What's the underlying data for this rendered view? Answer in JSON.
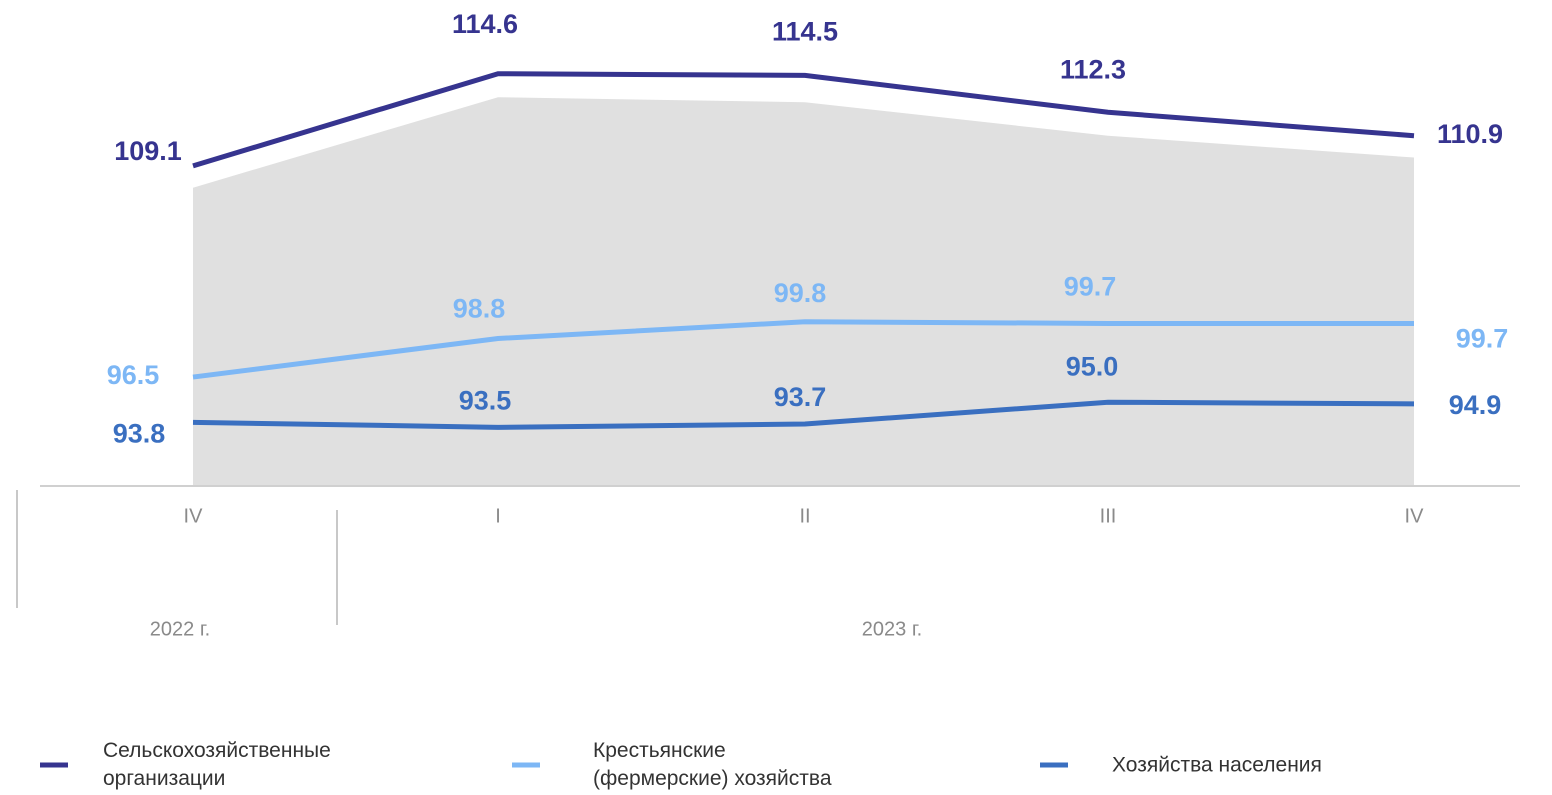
{
  "chart_data": {
    "type": "line",
    "categories": [
      "IV",
      "I",
      "II",
      "III",
      "IV"
    ],
    "groups": [
      {
        "label": "2022 г.",
        "span": 1
      },
      {
        "label": "2023 г.",
        "span": 4
      }
    ],
    "area": {
      "color": "#e0e0e0",
      "values": [
        107.8,
        113.2,
        112.9,
        110.9,
        109.6
      ]
    },
    "series": [
      {
        "name": "Сельскохозяйственные организации",
        "color": "#36348f",
        "values": [
          109.1,
          114.6,
          114.5,
          112.3,
          110.9
        ],
        "value_labels": [
          "109.1",
          "114.6",
          "114.5",
          "112.3",
          "110.9"
        ]
      },
      {
        "name": "Крестьянские (фермерские) хозяйства",
        "color": "#7db7f5",
        "values": [
          96.5,
          98.8,
          99.8,
          99.7,
          99.7
        ],
        "value_labels": [
          "96.5",
          "98.8",
          "99.8",
          "99.7",
          "99.7"
        ]
      },
      {
        "name": "Хозяйства населения",
        "color": "#3a6fc0",
        "values": [
          93.8,
          93.5,
          93.7,
          95,
          94.9
        ],
        "value_labels": [
          "93.8",
          "93.5",
          "93.7",
          "95.0",
          "94.9"
        ]
      }
    ],
    "ylim": [
      90,
      119
    ]
  }
}
